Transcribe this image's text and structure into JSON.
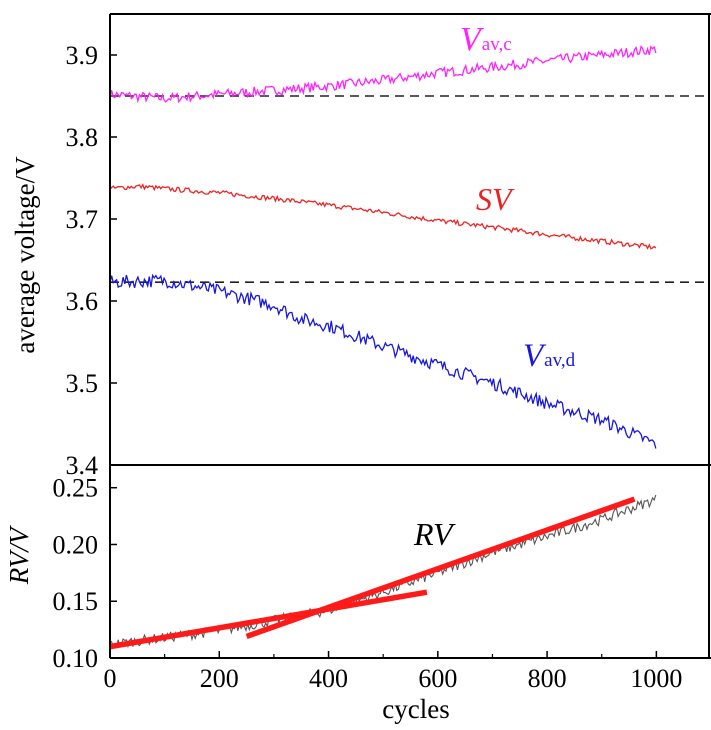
{
  "chart_data": [
    {
      "type": "line",
      "panel": "top",
      "ylabel": "average voltage/V",
      "xlim": [
        0,
        1100
      ],
      "ylim": [
        3.4,
        3.95
      ],
      "yticks": [
        "3.4",
        "3.5",
        "3.6",
        "3.7",
        "3.8",
        "3.9"
      ],
      "reference_lines": [
        3.85,
        3.623
      ],
      "series": [
        {
          "name": "Vav,c",
          "label_main": "V",
          "label_sub": "av,c",
          "color": "#ff22ff",
          "x": [
            0,
            100,
            200,
            300,
            400,
            500,
            600,
            700,
            800,
            900,
            1000
          ],
          "values": [
            3.852,
            3.847,
            3.852,
            3.857,
            3.862,
            3.869,
            3.878,
            3.885,
            3.893,
            3.9,
            3.907
          ]
        },
        {
          "name": "SV",
          "label_main": "SV",
          "label_sub": "",
          "color": "#ee2222",
          "x": [
            0,
            50,
            100,
            200,
            300,
            400,
            500,
            600,
            700,
            800,
            900,
            1000
          ],
          "values": [
            3.737,
            3.74,
            3.737,
            3.732,
            3.725,
            3.717,
            3.708,
            3.698,
            3.69,
            3.681,
            3.673,
            3.665
          ]
        },
        {
          "name": "Vav,d",
          "label_main": "V",
          "label_sub": "av,d",
          "color": "#1818dd",
          "x": [
            0,
            100,
            200,
            300,
            350,
            400,
            500,
            600,
            700,
            800,
            900,
            1000
          ],
          "values": [
            3.623,
            3.625,
            3.612,
            3.595,
            3.578,
            3.57,
            3.545,
            3.522,
            3.5,
            3.475,
            3.455,
            3.425
          ]
        }
      ]
    },
    {
      "type": "line",
      "panel": "bottom",
      "xlabel": "cycles",
      "ylabel": "RV/V",
      "xlim": [
        0,
        1100
      ],
      "ylim": [
        0.1,
        0.27
      ],
      "xticks": [
        "0",
        "200",
        "400",
        "600",
        "800",
        "1000"
      ],
      "yticks": [
        "0.10",
        "0.15",
        "0.20",
        "0.25"
      ],
      "series": [
        {
          "name": "RV",
          "label_main": "RV",
          "color": "#555555",
          "x": [
            0,
            100,
            200,
            300,
            400,
            500,
            600,
            700,
            800,
            900,
            1000
          ],
          "values": [
            0.112,
            0.118,
            0.124,
            0.133,
            0.142,
            0.158,
            0.175,
            0.193,
            0.207,
            0.222,
            0.24
          ]
        }
      ],
      "fit_lines": [
        {
          "color": "#ff1a1a",
          "x": [
            0,
            580
          ],
          "values": [
            0.11,
            0.158
          ]
        },
        {
          "color": "#ff1a1a",
          "x": [
            250,
            960
          ],
          "values": [
            0.119,
            0.24
          ]
        }
      ]
    }
  ]
}
